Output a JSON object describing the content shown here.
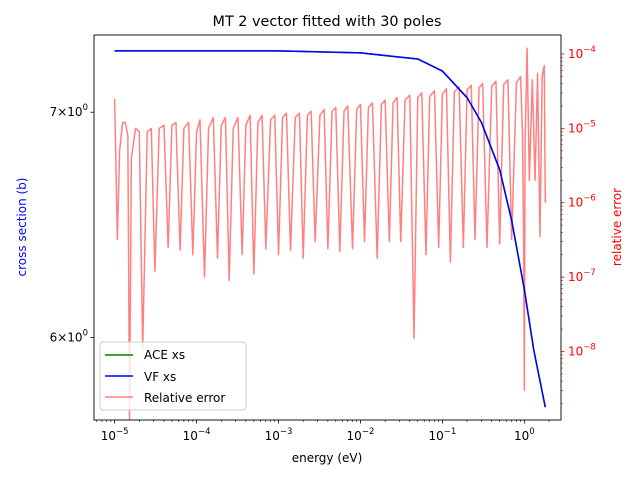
{
  "chart_data": {
    "type": "line",
    "title": "MT 2 vector fitted with 30 poles",
    "xlabel": "energy (eV)",
    "ylabel": "cross section (b)",
    "ylabel_right": "relative error",
    "x_scale": "log",
    "xlim": [
      5.6e-06,
      2.8
    ],
    "x_ticks": [
      {
        "value": 1e-05,
        "base": "10",
        "exp": "−5"
      },
      {
        "value": 0.0001,
        "base": "10",
        "exp": "−4"
      },
      {
        "value": 0.001,
        "base": "10",
        "exp": "−3"
      },
      {
        "value": 0.01,
        "base": "10",
        "exp": "−2"
      },
      {
        "value": 0.1,
        "base": "10",
        "exp": "−1"
      },
      {
        "value": 1,
        "base": "10",
        "exp": "0"
      }
    ],
    "y_left": {
      "scale": "log",
      "ylim": [
        5.67,
        7.38
      ],
      "ticks": [
        {
          "value": 6,
          "mant": "6",
          "base": "10",
          "exp": "0"
        },
        {
          "value": 7,
          "mant": "7",
          "base": "10",
          "exp": "0"
        }
      ],
      "color": "#0000ff"
    },
    "y_right": {
      "scale": "log",
      "ylim": [
        1.2e-09,
        0.00018
      ],
      "ticks": [
        {
          "value": 1e-08,
          "base": "10",
          "exp": "−8"
        },
        {
          "value": 1e-07,
          "base": "10",
          "exp": "−7"
        },
        {
          "value": 1e-06,
          "base": "10",
          "exp": "−6"
        },
        {
          "value": 1e-05,
          "base": "10",
          "exp": "−5"
        },
        {
          "value": 0.0001,
          "base": "10",
          "exp": "−4"
        }
      ],
      "color": "#ff0000"
    },
    "series": [
      {
        "name": "ACE xs",
        "color": "#008000",
        "axis": "left",
        "x": [
          1e-05,
          0.001,
          0.01,
          0.05,
          0.1,
          0.2,
          0.3,
          0.5,
          0.7,
          1.0,
          1.3,
          1.8
        ],
        "y": [
          7.3,
          7.3,
          7.29,
          7.26,
          7.2,
          7.07,
          6.95,
          6.73,
          6.5,
          6.2,
          5.95,
          5.72
        ]
      },
      {
        "name": "VF xs",
        "color": "#0000ff",
        "axis": "left",
        "x": [
          1e-05,
          0.001,
          0.01,
          0.05,
          0.1,
          0.2,
          0.3,
          0.5,
          0.7,
          1.0,
          1.3,
          1.8
        ],
        "y": [
          7.3,
          7.3,
          7.29,
          7.26,
          7.2,
          7.07,
          6.95,
          6.73,
          6.5,
          6.2,
          5.95,
          5.72
        ]
      },
      {
        "name": "Relative error",
        "color": "#ff8080",
        "axis": "right",
        "x": [
          1e-05,
          1.08e-05,
          1.15e-05,
          1.25e-05,
          1.35e-05,
          1.45e-05,
          1.52e-05,
          1.6e-05,
          1.8e-05,
          2e-05,
          2.2e-05,
          2.5e-05,
          2.8e-05,
          3.1e-05,
          3.5e-05,
          4e-05,
          4.5e-05,
          5e-05,
          5.6e-05,
          6.3e-05,
          7e-05,
          8e-05,
          9e-05,
          0.0001,
          0.00011,
          0.000125,
          0.00014,
          0.00016,
          0.00018,
          0.0002,
          0.000225,
          0.00025,
          0.00028,
          0.00032,
          0.00036,
          0.0004,
          0.00045,
          0.0005,
          0.00056,
          0.00063,
          0.0007,
          0.0008,
          0.0009,
          0.001,
          0.00112,
          0.00125,
          0.0014,
          0.0016,
          0.0018,
          0.002,
          0.00225,
          0.0025,
          0.0028,
          0.0032,
          0.0036,
          0.004,
          0.0045,
          0.005,
          0.0056,
          0.0063,
          0.007,
          0.008,
          0.009,
          0.01,
          0.0112,
          0.0125,
          0.014,
          0.016,
          0.018,
          0.02,
          0.0225,
          0.025,
          0.028,
          0.031,
          0.035,
          0.04,
          0.045,
          0.05,
          0.056,
          0.063,
          0.07,
          0.08,
          0.09,
          0.1,
          0.112,
          0.125,
          0.14,
          0.16,
          0.18,
          0.2,
          0.225,
          0.25,
          0.28,
          0.31,
          0.35,
          0.4,
          0.45,
          0.5,
          0.56,
          0.63,
          0.7,
          0.8,
          0.9,
          0.95,
          0.98,
          1.0,
          1.02,
          1.08,
          1.15,
          1.25,
          1.35,
          1.45,
          1.55,
          1.65,
          1.75,
          1.8
        ],
        "y": [
          2.5e-05,
          3.2e-07,
          5e-06,
          1.2e-05,
          1.2e-05,
          8e-06,
          1.2e-09,
          4e-06,
          1e-05,
          9e-06,
          1.1e-08,
          9e-06,
          1e-05,
          1.2e-07,
          1e-05,
          1.1e-05,
          2.5e-07,
          1.1e-05,
          1.2e-05,
          2.3e-07,
          1e-05,
          1.2e-05,
          2e-07,
          9e-06,
          1.3e-05,
          1e-07,
          1e-05,
          1.4e-05,
          1.8e-07,
          1.1e-05,
          1.4e-05,
          9e-08,
          1e-05,
          1.4e-05,
          2e-07,
          1.1e-05,
          1.5e-05,
          1.1e-07,
          1.2e-05,
          1.5e-05,
          2.4e-07,
          1.3e-05,
          1.5e-05,
          2e-07,
          1.4e-05,
          1.6e-05,
          2.3e-07,
          1.4e-05,
          1.6e-05,
          1.8e-07,
          1.5e-05,
          1.7e-05,
          3e-07,
          1.5e-05,
          1.8e-05,
          2.4e-07,
          1.7e-05,
          1.9e-05,
          2.2e-07,
          1.7e-05,
          2e-05,
          2.4e-07,
          1.8e-05,
          2.1e-05,
          3e-07,
          1.9e-05,
          2.2e-05,
          1.8e-07,
          2.1e-05,
          2.4e-05,
          3e-07,
          2.2e-05,
          2.6e-05,
          3e-07,
          2.4e-05,
          2.8e-05,
          1.5e-08,
          2.6e-05,
          3e-05,
          2e-07,
          2.7e-05,
          3.2e-05,
          2.5e-07,
          2.9e-05,
          3.4e-05,
          1.6e-07,
          3.1e-05,
          3.6e-05,
          2.5e-07,
          3.3e-05,
          3.8e-05,
          3.2e-07,
          3.5e-05,
          4e-05,
          2.5e-07,
          3.7e-05,
          4.3e-05,
          2.8e-07,
          3.9e-05,
          4.5e-05,
          3.2e-07,
          4.1e-05,
          5e-05,
          8e-06,
          3e-07,
          3e-09,
          6e-06,
          0.00012,
          2e-06,
          4.5e-05,
          2e-06,
          5.5e-05,
          3.5e-07,
          5e-05,
          7e-05,
          1e-06
        ]
      }
    ],
    "legend": {
      "placement": "lower-left",
      "items": [
        "ACE xs",
        "VF xs",
        "Relative error"
      ]
    }
  }
}
